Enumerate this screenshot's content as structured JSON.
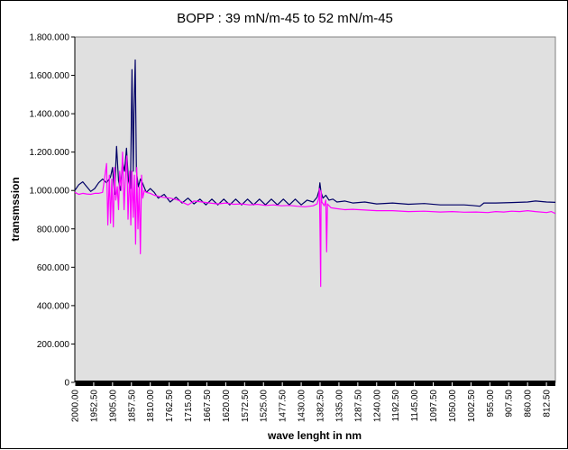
{
  "chart_data": {
    "type": "line",
    "title": "BOPP : 39 mN/m-45 to 52 mN/m-45",
    "xlabel": "wave lenght in nm",
    "ylabel": "transmssion",
    "xlim": [
      2000,
      790
    ],
    "ylim": [
      0,
      1800000
    ],
    "grid": false,
    "legend": "none",
    "background_color": "#e0e0e0",
    "y_tick_labels": [
      "0",
      "200.000",
      "400.000",
      "600.000",
      "800.000",
      "1.000.000",
      "1.200.000",
      "1.400.000",
      "1.600.000",
      "1.800.000"
    ],
    "x_tick_labels": [
      "2000.00",
      "1952.50",
      "1905.00",
      "1857.50",
      "1810.00",
      "1762.50",
      "1715.00",
      "1667.50",
      "1620.00",
      "1572.50",
      "1525.00",
      "1477.50",
      "1430.00",
      "1382.50",
      "1335.00",
      "1287.50",
      "1240.00",
      "1192.50",
      "1145.00",
      "1097.50",
      "1050.00",
      "1002.50",
      "955.00",
      "907.50",
      "860.00",
      "812.50"
    ],
    "series": [
      {
        "color": "#000066",
        "points": [
          [
            2000,
            1000000
          ],
          [
            1990,
            1030000
          ],
          [
            1980,
            1045000
          ],
          [
            1970,
            1020000
          ],
          [
            1960,
            995000
          ],
          [
            1950,
            1010000
          ],
          [
            1940,
            1040000
          ],
          [
            1930,
            1060000
          ],
          [
            1920,
            1040000
          ],
          [
            1910,
            1070000
          ],
          [
            1905,
            1120000
          ],
          [
            1900,
            980000
          ],
          [
            1895,
            1230000
          ],
          [
            1890,
            1050000
          ],
          [
            1885,
            1000000
          ],
          [
            1880,
            1150000
          ],
          [
            1875,
            1100000
          ],
          [
            1870,
            1220000
          ],
          [
            1865,
            1050000
          ],
          [
            1860,
            1010000
          ],
          [
            1856,
            1630000
          ],
          [
            1853,
            1100000
          ],
          [
            1851,
            1400000
          ],
          [
            1848,
            1680000
          ],
          [
            1845,
            1100000
          ],
          [
            1840,
            1020000
          ],
          [
            1835,
            1060000
          ],
          [
            1830,
            1040000
          ],
          [
            1820,
            990000
          ],
          [
            1810,
            1010000
          ],
          [
            1800,
            990000
          ],
          [
            1790,
            960000
          ],
          [
            1775,
            980000
          ],
          [
            1760,
            940000
          ],
          [
            1745,
            965000
          ],
          [
            1730,
            935000
          ],
          [
            1715,
            960000
          ],
          [
            1700,
            930000
          ],
          [
            1685,
            955000
          ],
          [
            1670,
            925000
          ],
          [
            1655,
            955000
          ],
          [
            1640,
            925000
          ],
          [
            1625,
            955000
          ],
          [
            1610,
            925000
          ],
          [
            1595,
            955000
          ],
          [
            1580,
            925000
          ],
          [
            1565,
            955000
          ],
          [
            1550,
            925000
          ],
          [
            1535,
            955000
          ],
          [
            1520,
            925000
          ],
          [
            1505,
            955000
          ],
          [
            1490,
            925000
          ],
          [
            1475,
            955000
          ],
          [
            1460,
            925000
          ],
          [
            1445,
            955000
          ],
          [
            1430,
            925000
          ],
          [
            1415,
            950000
          ],
          [
            1400,
            940000
          ],
          [
            1390,
            965000
          ],
          [
            1385,
            1000000
          ],
          [
            1383,
            1040000
          ],
          [
            1380,
            990000
          ],
          [
            1375,
            960000
          ],
          [
            1368,
            975000
          ],
          [
            1360,
            950000
          ],
          [
            1350,
            955000
          ],
          [
            1340,
            940000
          ],
          [
            1320,
            945000
          ],
          [
            1300,
            935000
          ],
          [
            1270,
            940000
          ],
          [
            1240,
            930000
          ],
          [
            1200,
            935000
          ],
          [
            1160,
            928000
          ],
          [
            1120,
            932000
          ],
          [
            1080,
            925000
          ],
          [
            1050,
            925000
          ],
          [
            1020,
            925000
          ],
          [
            1000,
            922000
          ],
          [
            980,
            918000
          ],
          [
            970,
            935000
          ],
          [
            940,
            935000
          ],
          [
            900,
            937000
          ],
          [
            860,
            940000
          ],
          [
            840,
            945000
          ],
          [
            812,
            940000
          ],
          [
            790,
            938000
          ]
        ]
      },
      {
        "color": "#ff00ff",
        "points": [
          [
            2000,
            990000
          ],
          [
            1990,
            980000
          ],
          [
            1980,
            985000
          ],
          [
            1970,
            982000
          ],
          [
            1960,
            980000
          ],
          [
            1950,
            985000
          ],
          [
            1940,
            985000
          ],
          [
            1930,
            990000
          ],
          [
            1920,
            1140000
          ],
          [
            1917,
            820000
          ],
          [
            1913,
            1080000
          ],
          [
            1910,
            830000
          ],
          [
            1907,
            1060000
          ],
          [
            1903,
            810000
          ],
          [
            1900,
            1120000
          ],
          [
            1897,
            950000
          ],
          [
            1893,
            1020000
          ],
          [
            1890,
            900000
          ],
          [
            1887,
            1100000
          ],
          [
            1883,
            1000000
          ],
          [
            1880,
            1200000
          ],
          [
            1876,
            900000
          ],
          [
            1873,
            1050000
          ],
          [
            1869,
            1180000
          ],
          [
            1866,
            850000
          ],
          [
            1862,
            1100000
          ],
          [
            1859,
            820000
          ],
          [
            1856,
            1100000
          ],
          [
            1853,
            860000
          ],
          [
            1850,
            1080000
          ],
          [
            1847,
            720000
          ],
          [
            1844,
            1120000
          ],
          [
            1841,
            800000
          ],
          [
            1838,
            1020000
          ],
          [
            1835,
            670000
          ],
          [
            1832,
            1080000
          ],
          [
            1829,
            960000
          ],
          [
            1825,
            1000000
          ],
          [
            1820,
            990000
          ],
          [
            1810,
            985000
          ],
          [
            1800,
            975000
          ],
          [
            1780,
            965000
          ],
          [
            1760,
            960000
          ],
          [
            1740,
            950000
          ],
          [
            1725,
            935000
          ],
          [
            1715,
            925000
          ],
          [
            1700,
            945000
          ],
          [
            1680,
            940000
          ],
          [
            1660,
            935000
          ],
          [
            1640,
            930000
          ],
          [
            1620,
            935000
          ],
          [
            1600,
            928000
          ],
          [
            1580,
            930000
          ],
          [
            1560,
            925000
          ],
          [
            1540,
            928000
          ],
          [
            1520,
            922000
          ],
          [
            1500,
            925000
          ],
          [
            1480,
            920000
          ],
          [
            1460,
            922000
          ],
          [
            1440,
            918000
          ],
          [
            1420,
            915000
          ],
          [
            1400,
            920000
          ],
          [
            1390,
            930000
          ],
          [
            1386,
            960000
          ],
          [
            1384,
            1010000
          ],
          [
            1382,
            700000
          ],
          [
            1381,
            500000
          ],
          [
            1380,
            1000000
          ],
          [
            1378,
            940000
          ],
          [
            1372,
            920000
          ],
          [
            1368,
            950000
          ],
          [
            1366,
            680000
          ],
          [
            1364,
            930000
          ],
          [
            1355,
            910000
          ],
          [
            1340,
            905000
          ],
          [
            1320,
            900000
          ],
          [
            1300,
            902000
          ],
          [
            1270,
            898000
          ],
          [
            1240,
            895000
          ],
          [
            1200,
            895000
          ],
          [
            1160,
            890000
          ],
          [
            1120,
            892000
          ],
          [
            1080,
            888000
          ],
          [
            1050,
            890000
          ],
          [
            1020,
            887000
          ],
          [
            990,
            888000
          ],
          [
            960,
            885000
          ],
          [
            940,
            890000
          ],
          [
            920,
            888000
          ],
          [
            900,
            892000
          ],
          [
            880,
            890000
          ],
          [
            860,
            895000
          ],
          [
            840,
            890000
          ],
          [
            812,
            885000
          ],
          [
            800,
            890000
          ],
          [
            790,
            880000
          ]
        ]
      }
    ]
  }
}
